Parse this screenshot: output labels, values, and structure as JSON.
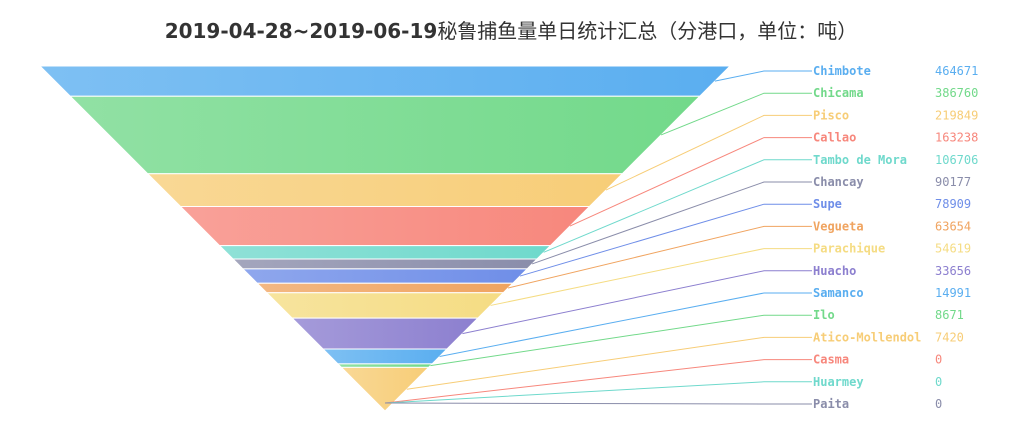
{
  "title_date": "2019-04-28~2019-06-19",
  "title_rest": "秘鲁捕鱼量单日统计汇总（分港口，单位：吨）",
  "chart_data": {
    "type": "funnel",
    "title": "2019-04-28~2019-06-19秘鲁捕鱼量单日统计汇总（分港口，单位：吨）",
    "items": [
      {
        "name": "Chimbote",
        "value": 464671,
        "color": "#5aaef0"
      },
      {
        "name": "Chicama",
        "value": 386760,
        "color": "#72d98a"
      },
      {
        "name": "Pisco",
        "value": 219849,
        "color": "#f7cd77"
      },
      {
        "name": "Callao",
        "value": 163238,
        "color": "#f7877c"
      },
      {
        "name": "Tambo de Mora",
        "value": 106706,
        "color": "#6fd9cc"
      },
      {
        "name": "Chancay",
        "value": 90177,
        "color": "#8a8daa"
      },
      {
        "name": "Supe",
        "value": 78909,
        "color": "#6f8ee8"
      },
      {
        "name": "Vegueta",
        "value": 63654,
        "color": "#f0a460"
      },
      {
        "name": "Parachique",
        "value": 54619,
        "color": "#f5dc83"
      },
      {
        "name": "Huacho",
        "value": 33656,
        "color": "#8c7fcf"
      },
      {
        "name": "Samanco",
        "value": 14991,
        "color": "#5aaef0"
      },
      {
        "name": "Ilo",
        "value": 8671,
        "color": "#72d98a"
      },
      {
        "name": "Atico-Mollendol",
        "value": 7420,
        "color": "#f7cd77"
      },
      {
        "name": "Casma",
        "value": 0,
        "color": "#f7877c"
      },
      {
        "name": "Huarmey",
        "value": 0,
        "color": "#6fd9cc"
      },
      {
        "name": "Paita",
        "value": 0,
        "color": "#8a8daa"
      }
    ]
  }
}
